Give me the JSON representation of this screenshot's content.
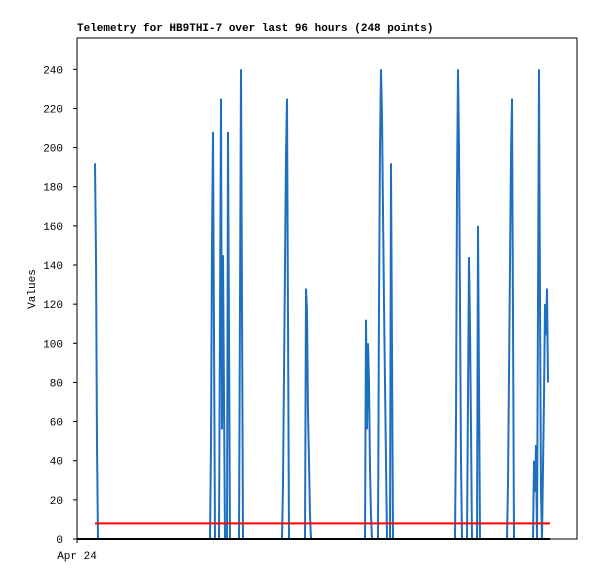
{
  "chart_data": {
    "type": "line",
    "title": "Telemetry for HB9THI-7 over last 96 hours (248 points)",
    "y_label": "Values",
    "xlim": [
      0,
      500
    ],
    "xticks": [
      {
        "value": 0,
        "label": "Apr 24"
      }
    ],
    "ylim": [
      0,
      256
    ],
    "yticks": [
      0,
      20,
      40,
      60,
      80,
      100,
      120,
      140,
      160,
      180,
      200,
      220,
      240
    ],
    "grid": false,
    "series": [
      {
        "color": "#1f6fc0",
        "x": [
          18,
          19,
          20,
          21,
          133,
          134,
          135,
          136,
          137,
          138,
          142,
          143,
          144,
          145,
          146,
          147,
          148,
          150,
          151,
          152,
          153,
          162,
          163,
          164,
          165,
          166,
          205,
          206,
          207,
          208,
          209,
          210,
          211,
          212,
          228,
          229,
          230,
          231,
          232,
          233,
          234,
          288,
          289,
          290,
          291,
          292,
          293,
          294,
          295,
          301,
          302,
          303,
          304,
          305,
          306,
          307,
          308,
          309,
          310,
          313,
          314,
          315,
          316,
          378,
          379,
          380,
          381,
          382,
          383,
          384,
          385,
          390,
          391,
          392,
          393,
          394,
          395,
          400,
          401,
          402,
          403,
          430,
          431,
          432,
          433,
          434,
          435,
          436,
          437,
          456,
          457,
          458,
          459,
          460,
          461,
          462,
          463,
          464,
          465,
          467,
          468,
          469,
          470,
          471
        ],
        "values": [
          192,
          145,
          48,
          0,
          0,
          48,
          152,
          208,
          104,
          0,
          0,
          112,
          225,
          56,
          145,
          72,
          0,
          0,
          208,
          104,
          0,
          0,
          120,
          240,
          120,
          0,
          0,
          28,
          84,
          140,
          196,
          225,
          112,
          0,
          0,
          128,
          116,
          64,
          40,
          12,
          0,
          0,
          112,
          56,
          100,
          80,
          36,
          12,
          0,
          0,
          120,
          200,
          240,
          216,
          168,
          120,
          80,
          40,
          0,
          0,
          192,
          96,
          0,
          0,
          60,
          180,
          240,
          200,
          120,
          40,
          0,
          0,
          72,
          144,
          108,
          56,
          0,
          0,
          160,
          80,
          0,
          0,
          28,
          84,
          140,
          196,
          225,
          112,
          0,
          0,
          40,
          24,
          48,
          0,
          120,
          240,
          120,
          24,
          0,
          72,
          120,
          104,
          128,
          80
        ]
      },
      {
        "color": "#ff0000",
        "x": [
          18,
          473
        ],
        "values": [
          8,
          8
        ]
      },
      {
        "color": "#000000",
        "x": [
          0,
          473
        ],
        "values": [
          0,
          0
        ]
      }
    ]
  }
}
